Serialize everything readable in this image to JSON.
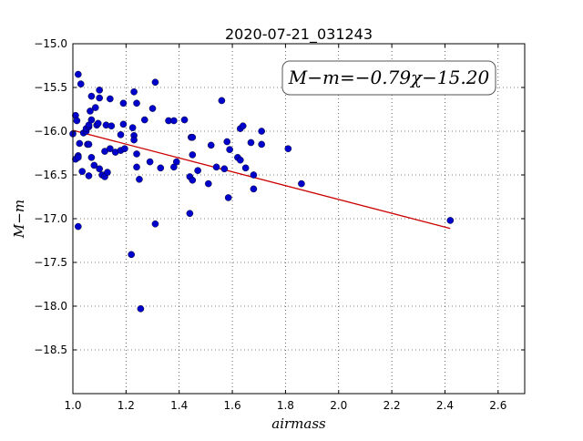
{
  "chart_data": {
    "type": "scatter",
    "title": "2020-07-21_031243",
    "xlabel": "airmass",
    "ylabel": "M−m",
    "xlim": [
      1.0,
      2.7
    ],
    "ylim": [
      -15.0,
      -19.0
    ],
    "y_inverted": true,
    "grid": true,
    "x_ticks": [
      1.0,
      1.2,
      1.4,
      1.6,
      1.8,
      2.0,
      2.2,
      2.4,
      2.6
    ],
    "x_tick_labels": [
      "1.0",
      "1.2",
      "1.4",
      "1.6",
      "1.8",
      "2.0",
      "2.2",
      "2.4",
      "2.6"
    ],
    "y_ticks": [
      -15.0,
      -15.5,
      -16.0,
      -16.5,
      -17.0,
      -17.5,
      -18.0,
      -18.5
    ],
    "y_tick_labels": [
      "−15.0",
      "−15.5",
      "−16.0",
      "−16.5",
      "−17.0",
      "−17.5",
      "−18.0",
      "−18.5"
    ],
    "annotation": "M−m=−0.79χ−15.20",
    "annotation_placement": "top-right",
    "marker_color": "#0000cc",
    "fit_color": "#cc0000",
    "fit": {
      "slope": -0.79,
      "intercept": -15.2,
      "x_range": [
        1.0,
        2.42
      ]
    },
    "points": [
      [
        1.0,
        -16.03
      ],
      [
        1.01,
        -15.82
      ],
      [
        1.015,
        -15.88
      ],
      [
        1.01,
        -16.32
      ],
      [
        1.02,
        -16.28
      ],
      [
        1.02,
        -16.3
      ],
      [
        1.02,
        -15.35
      ],
      [
        1.03,
        -15.46
      ],
      [
        1.025,
        -16.14
      ],
      [
        1.02,
        -17.09
      ],
      [
        1.035,
        -16.46
      ],
      [
        1.04,
        -16.02
      ],
      [
        1.05,
        -16.0
      ],
      [
        1.05,
        -15.97
      ],
      [
        1.055,
        -16.15
      ],
      [
        1.06,
        -16.15
      ],
      [
        1.06,
        -15.95
      ],
      [
        1.06,
        -15.93
      ],
      [
        1.06,
        -16.51
      ],
      [
        1.065,
        -15.77
      ],
      [
        1.07,
        -15.6
      ],
      [
        1.07,
        -16.3
      ],
      [
        1.07,
        -15.87
      ],
      [
        1.08,
        -16.39
      ],
      [
        1.085,
        -15.73
      ],
      [
        1.09,
        -15.93
      ],
      [
        1.095,
        -15.91
      ],
      [
        1.1,
        -15.53
      ],
      [
        1.1,
        -15.62
      ],
      [
        1.1,
        -16.43
      ],
      [
        1.11,
        -16.5
      ],
      [
        1.12,
        -16.23
      ],
      [
        1.12,
        -16.52
      ],
      [
        1.125,
        -15.93
      ],
      [
        1.13,
        -16.47
      ],
      [
        1.14,
        -15.63
      ],
      [
        1.14,
        -16.2
      ],
      [
        1.145,
        -15.94
      ],
      [
        1.16,
        -16.24
      ],
      [
        1.18,
        -16.22
      ],
      [
        1.18,
        -16.04
      ],
      [
        1.19,
        -15.68
      ],
      [
        1.19,
        -15.92
      ],
      [
        1.195,
        -16.2
      ],
      [
        1.22,
        -17.41
      ],
      [
        1.225,
        -15.96
      ],
      [
        1.23,
        -16.05
      ],
      [
        1.23,
        -16.1
      ],
      [
        1.23,
        -15.55
      ],
      [
        1.24,
        -16.26
      ],
      [
        1.24,
        -16.41
      ],
      [
        1.24,
        -15.68
      ],
      [
        1.25,
        -16.55
      ],
      [
        1.255,
        -18.03
      ],
      [
        1.27,
        -15.87
      ],
      [
        1.29,
        -16.35
      ],
      [
        1.3,
        -15.74
      ],
      [
        1.31,
        -17.06
      ],
      [
        1.31,
        -15.44
      ],
      [
        1.33,
        -16.42
      ],
      [
        1.36,
        -15.88
      ],
      [
        1.38,
        -15.88
      ],
      [
        1.38,
        -16.41
      ],
      [
        1.39,
        -16.35
      ],
      [
        1.42,
        -15.87
      ],
      [
        1.44,
        -16.52
      ],
      [
        1.44,
        -16.94
      ],
      [
        1.445,
        -16.07
      ],
      [
        1.45,
        -16.07
      ],
      [
        1.45,
        -16.27
      ],
      [
        1.45,
        -16.56
      ],
      [
        1.47,
        -16.45
      ],
      [
        1.51,
        -16.6
      ],
      [
        1.52,
        -16.16
      ],
      [
        1.54,
        -16.41
      ],
      [
        1.56,
        -15.65
      ],
      [
        1.57,
        -16.43
      ],
      [
        1.58,
        -16.12
      ],
      [
        1.585,
        -16.76
      ],
      [
        1.59,
        -16.21
      ],
      [
        1.62,
        -16.3
      ],
      [
        1.63,
        -16.33
      ],
      [
        1.63,
        -15.97
      ],
      [
        1.64,
        -15.94
      ],
      [
        1.65,
        -16.42
      ],
      [
        1.67,
        -16.13
      ],
      [
        1.68,
        -16.5
      ],
      [
        1.68,
        -16.66
      ],
      [
        1.71,
        -16.0
      ],
      [
        1.71,
        -16.15
      ],
      [
        1.81,
        -16.2
      ],
      [
        1.86,
        -16.6
      ],
      [
        2.42,
        -17.02
      ]
    ]
  }
}
